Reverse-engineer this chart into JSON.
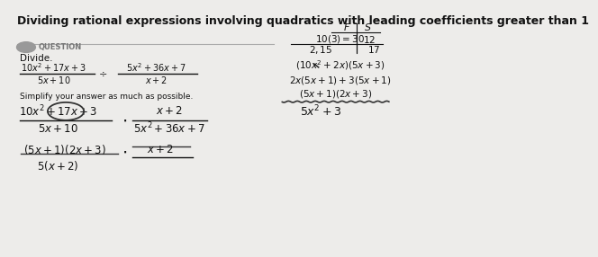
{
  "bg_color": "#edecea",
  "title": "Dividing rational expressions involving quadratics with leading coefficients greater than 1",
  "title_fontsize": 9.0,
  "question_label": "QUESTION",
  "divide_label": "Divide.",
  "simplify_label": "Simplify your answer as much as possible."
}
